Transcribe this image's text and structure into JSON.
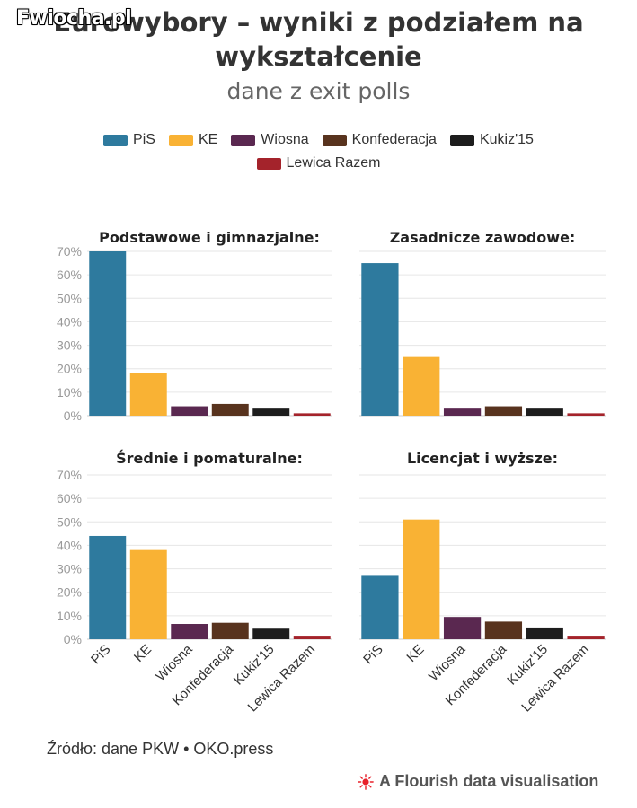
{
  "watermark": "Fwiocha.pl",
  "title": "Eurowybory – wyniki z podziałem na wykształcenie",
  "subtitle": "dane z exit polls",
  "legend": [
    {
      "name": "PiS",
      "color": "#2e7a9e"
    },
    {
      "name": "KE",
      "color": "#f9b234"
    },
    {
      "name": "Wiosna",
      "color": "#5a2850"
    },
    {
      "name": "Konfederacja",
      "color": "#58331e"
    },
    {
      "name": "Kukiz'15",
      "color": "#1d1d1d"
    },
    {
      "name": "Lewica Razem",
      "color": "#a4232b"
    }
  ],
  "chart_data": [
    {
      "type": "bar",
      "title": "Podstawowe i gimnazjalne:",
      "categories": [
        "PiS",
        "KE",
        "Wiosna",
        "Konfederacja",
        "Kukiz'15",
        "Lewica Razem"
      ],
      "values": [
        70,
        18,
        4,
        5,
        3,
        1
      ],
      "ylim": [
        0,
        70
      ],
      "yticks": [
        "0%",
        "10%",
        "20%",
        "30%",
        "40%",
        "50%",
        "60%",
        "70%"
      ],
      "grid": true
    },
    {
      "type": "bar",
      "title": "Zasadnicze zawodowe:",
      "categories": [
        "PiS",
        "KE",
        "Wiosna",
        "Konfederacja",
        "Kukiz'15",
        "Lewica Razem"
      ],
      "values": [
        65,
        25,
        3,
        4,
        3,
        1
      ],
      "ylim": [
        0,
        70
      ],
      "grid": true
    },
    {
      "type": "bar",
      "title": "Średnie i pomaturalne:",
      "categories": [
        "PiS",
        "KE",
        "Wiosna",
        "Konfederacja",
        "Kukiz'15",
        "Lewica Razem"
      ],
      "values": [
        44,
        38,
        6.5,
        7,
        4.5,
        1.5
      ],
      "ylim": [
        0,
        70
      ],
      "yticks": [
        "0%",
        "10%",
        "20%",
        "30%",
        "40%",
        "50%",
        "60%",
        "70%"
      ],
      "grid": true
    },
    {
      "type": "bar",
      "title": "Licencjat i wyższe:",
      "categories": [
        "PiS",
        "KE",
        "Wiosna",
        "Konfederacja",
        "Kukiz'15",
        "Lewica Razem"
      ],
      "values": [
        27,
        51,
        9.5,
        7.5,
        5,
        1.5
      ],
      "ylim": [
        0,
        70
      ],
      "grid": true
    }
  ],
  "source": "Źródło: dane PKW • OKO.press",
  "credit": "A Flourish data visualisation"
}
